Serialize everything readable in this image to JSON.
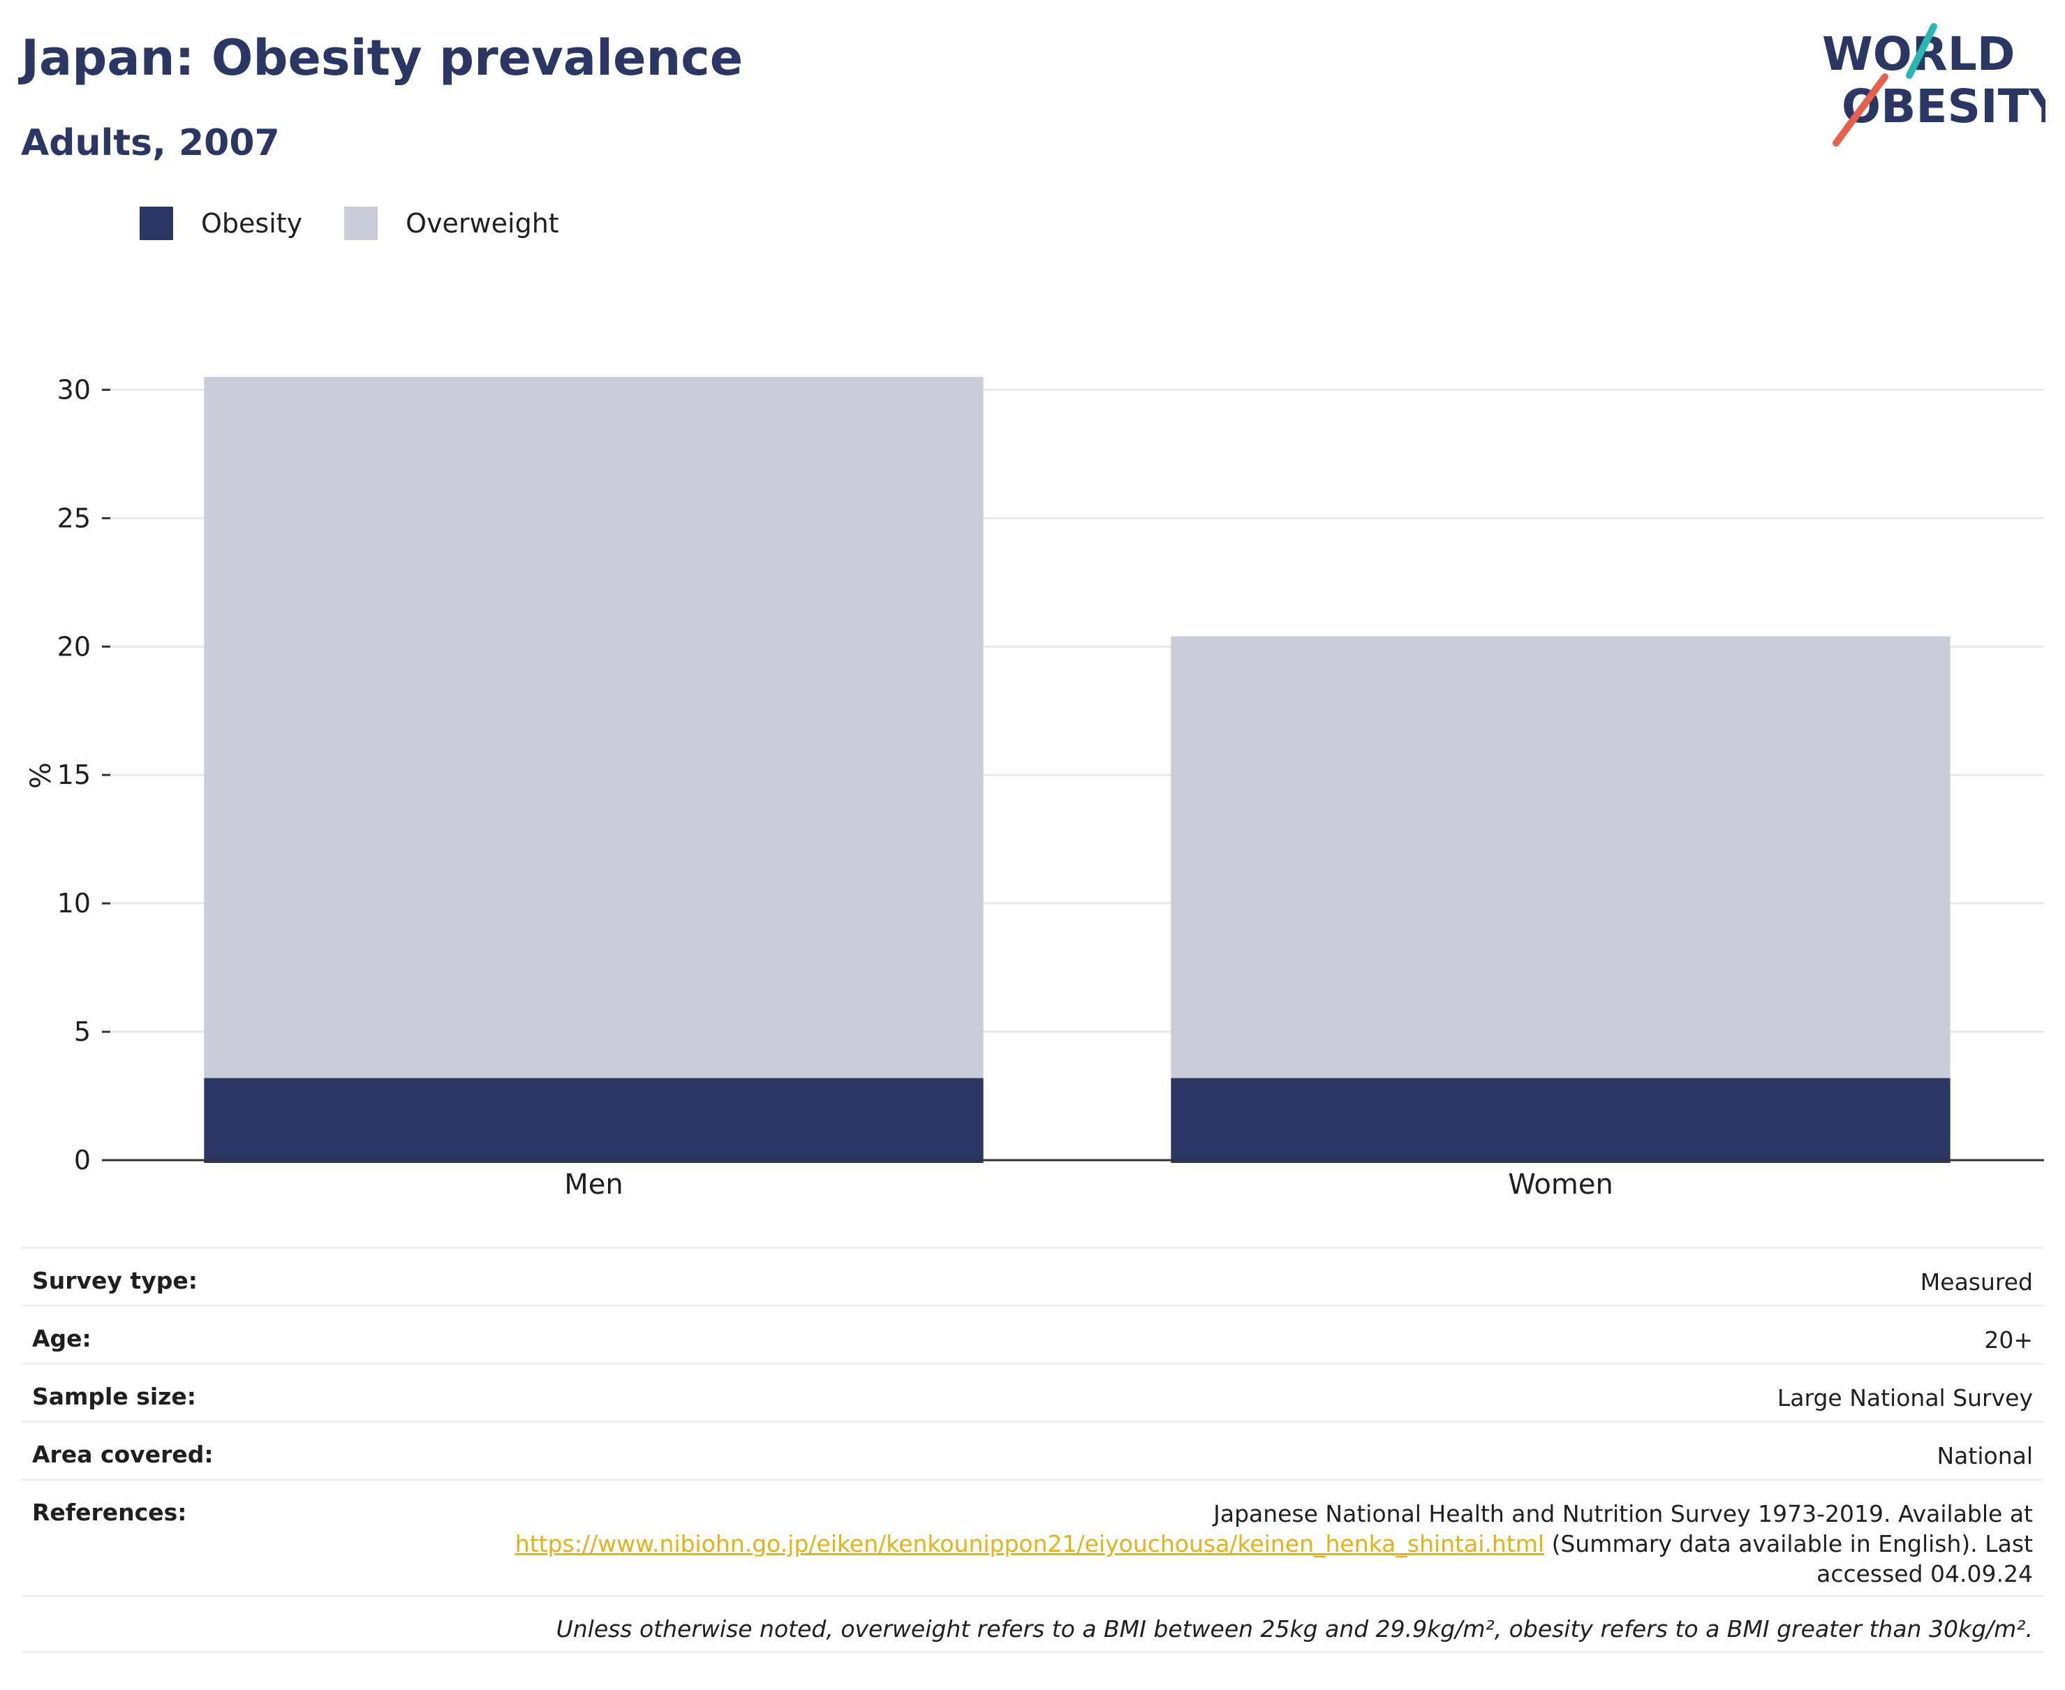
{
  "header": {
    "title": "Japan: Obesity prevalence",
    "subtitle": "Adults, 2007"
  },
  "logo": {
    "line1": "WORLD",
    "line2": "OBESITY",
    "accent_teal": "#2ab7b0",
    "accent_red": "#e8604c",
    "text_color": "#2a3663"
  },
  "colors": {
    "obesity": "#2a3663",
    "overweight": "#c9ccd8",
    "grid": "#e6e8ee",
    "axis": "#333333",
    "link": "#e6b116"
  },
  "chart_data": {
    "type": "bar",
    "stacked": true,
    "categories": [
      "Men",
      "Women"
    ],
    "series": [
      {
        "name": "Obesity",
        "values": [
          3.2,
          3.2
        ]
      },
      {
        "name": "Overweight",
        "values": [
          27.3,
          17.2
        ]
      }
    ],
    "ylabel": "%",
    "ylim": [
      0,
      30.5
    ],
    "yticks": [
      0,
      5,
      10,
      15,
      20,
      25,
      30
    ],
    "grid": true,
    "legend_position": "top-left"
  },
  "meta": {
    "survey_type": {
      "label": "Survey type:",
      "value": "Measured"
    },
    "age": {
      "label": "Age:",
      "value": "20+"
    },
    "sample_size": {
      "label": "Sample size:",
      "value": "Large National Survey"
    },
    "area_covered": {
      "label": "Area covered:",
      "value": "National"
    },
    "references": {
      "label": "References:",
      "text_before": "Japanese National Health and Nutrition Survey 1973-2019. Available at",
      "link": "https://www.nibiohn.go.jp/eiken/kenkounippon21/eiyouchousa/keinen_henka_shintai.html",
      "text_after": "(Summary data available in English). Last",
      "text_end": "accessed 04.09.24"
    },
    "note": "Unless otherwise noted, overweight refers to a BMI between 25kg and 29.9kg/m², obesity refers to a BMI greater than 30kg/m²."
  }
}
